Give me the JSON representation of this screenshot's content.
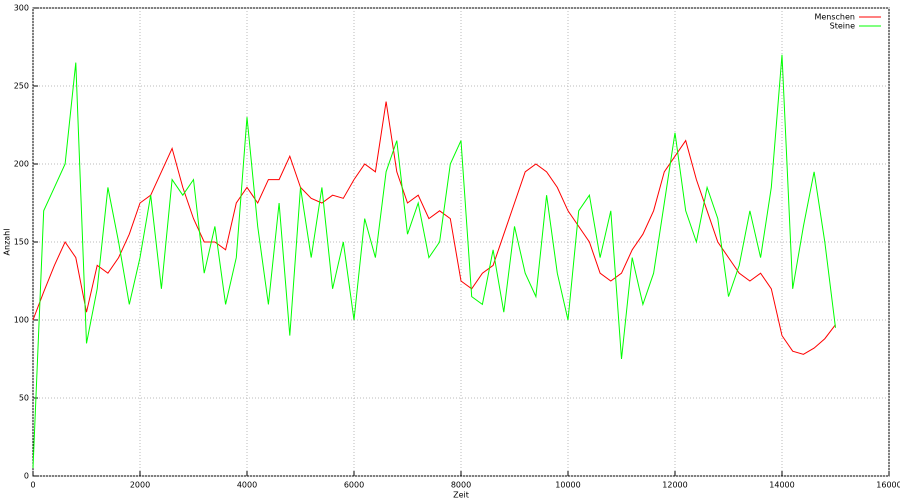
{
  "chart_data": {
    "type": "line",
    "x_label": "Zeit",
    "y_label": "Anzahl",
    "x": [
      0,
      200,
      400,
      600,
      800,
      1000,
      1200,
      1400,
      1600,
      1800,
      2000,
      2200,
      2400,
      2600,
      2800,
      3000,
      3200,
      3400,
      3600,
      3800,
      4000,
      4200,
      4400,
      4600,
      4800,
      5000,
      5200,
      5400,
      5600,
      5800,
      6000,
      6200,
      6400,
      6600,
      6800,
      7000,
      7200,
      7400,
      7600,
      7800,
      8000,
      8200,
      8400,
      8600,
      8800,
      9000,
      9200,
      9400,
      9600,
      9800,
      10000,
      10200,
      10400,
      10600,
      10800,
      11000,
      11200,
      11400,
      11600,
      11800,
      12000,
      12200,
      12400,
      12600,
      12800,
      13000,
      13200,
      13400,
      13600,
      13800,
      14000,
      14200,
      14400,
      14600,
      14800,
      15000
    ],
    "series": [
      {
        "name": "Menschen",
        "color": "#ff0000",
        "values": [
          100,
          118,
          135,
          150,
          140,
          105,
          135,
          130,
          140,
          155,
          175,
          180,
          195,
          210,
          185,
          165,
          150,
          150,
          145,
          175,
          185,
          175,
          190,
          190,
          205,
          185,
          178,
          175,
          180,
          178,
          190,
          200,
          195,
          240,
          195,
          175,
          180,
          165,
          170,
          165,
          125,
          120,
          130,
          135,
          155,
          175,
          195,
          200,
          195,
          185,
          170,
          160,
          150,
          130,
          125,
          130,
          145,
          155,
          170,
          195,
          205,
          215,
          190,
          170,
          150,
          140,
          130,
          125,
          130,
          120,
          90,
          80,
          78,
          82,
          88,
          97
        ]
      },
      {
        "name": "Steine",
        "color": "#00ff00",
        "values": [
          5,
          170,
          185,
          200,
          265,
          85,
          120,
          185,
          150,
          110,
          140,
          180,
          120,
          190,
          180,
          190,
          130,
          160,
          110,
          140,
          230,
          160,
          110,
          175,
          90,
          185,
          140,
          185,
          120,
          150,
          100,
          165,
          140,
          195,
          215,
          155,
          175,
          140,
          150,
          200,
          215,
          115,
          110,
          145,
          105,
          160,
          130,
          115,
          180,
          130,
          100,
          170,
          180,
          140,
          170,
          75,
          140,
          110,
          130,
          175,
          220,
          170,
          150,
          185,
          165,
          115,
          135,
          170,
          140,
          185,
          270,
          120,
          160,
          195,
          150,
          95
        ]
      }
    ],
    "xlim": [
      0,
      16000
    ],
    "xticks": [
      0,
      2000,
      4000,
      6000,
      8000,
      10000,
      12000,
      14000,
      16000
    ],
    "ylim": [
      0,
      300
    ],
    "yticks": [
      0,
      50,
      100,
      150,
      200,
      250,
      300
    ],
    "grid": true,
    "legend": "top-right"
  }
}
